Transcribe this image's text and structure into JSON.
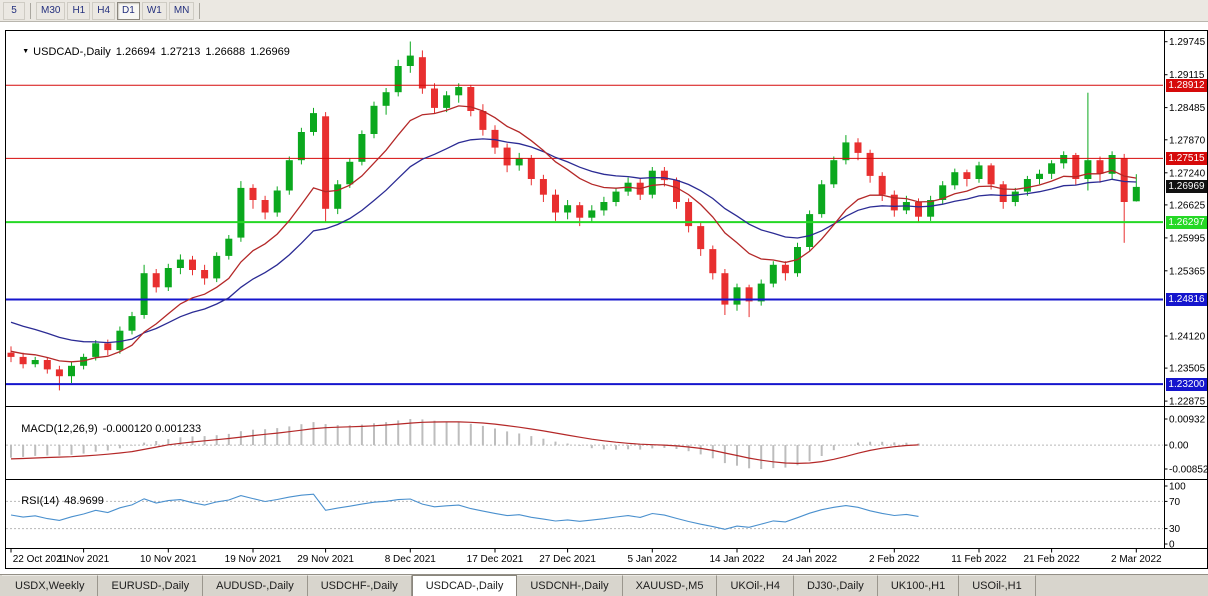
{
  "toolbar": {
    "buttons": [
      "5",
      "M30",
      "H1",
      "H4",
      "D1",
      "W1",
      "MN"
    ],
    "active": "D1"
  },
  "chart": {
    "dropdown_icon": "▼",
    "symbol_label": "USDCAD-,Daily",
    "ohlc_display": {
      "open": "1.26694",
      "high": "1.27213",
      "low": "1.26688",
      "close": "1.26969"
    }
  },
  "macd": {
    "label": "MACD(12,26,9)",
    "values": "-0.000120 0.001233",
    "axis_labels": [
      "0.00932",
      "0.00",
      "-0.00852"
    ]
  },
  "rsi": {
    "label": "RSI(14)",
    "value": "48.9699",
    "axis_labels": [
      "100",
      "70",
      "30",
      "0"
    ],
    "levels": [
      70,
      30
    ]
  },
  "tabs": {
    "active": "USDCAD-,Daily",
    "items": [
      "USDX,Weekly",
      "EURUSD-,Daily",
      "AUDUSD-,Daily",
      "USDCHF-,Daily",
      "USDCAD-,Daily",
      "USDCNH-,Daily",
      "XAUUSD-,M5",
      "UKOil-,H4",
      "DJ30-,Daily",
      "UK100-,H1",
      "USOil-,H1"
    ]
  },
  "chart_data": {
    "type": "candlestick",
    "symbol": "USDCAD",
    "timeframe": "Daily",
    "ylim": [
      1.228,
      1.2995
    ],
    "y_axis_labels": [
      "1.29745",
      "1.29115",
      "1.28485",
      "1.27870",
      "1.27240",
      "1.26625",
      "1.25995",
      "1.25365",
      "1.24120",
      "1.23505",
      "1.22875"
    ],
    "x_axis_labels": [
      {
        "index": 0,
        "label": "22 Oct 2021"
      },
      {
        "index": 6,
        "label": "1 Nov 2021"
      },
      {
        "index": 13,
        "label": "10 Nov 2021"
      },
      {
        "index": 20,
        "label": "19 Nov 2021"
      },
      {
        "index": 26,
        "label": "29 Nov 2021"
      },
      {
        "index": 33,
        "label": "8 Dec 2021"
      },
      {
        "index": 40,
        "label": "17 Dec 2021"
      },
      {
        "index": 46,
        "label": "27 Dec 2021"
      },
      {
        "index": 53,
        "label": "5 Jan 2022"
      },
      {
        "index": 60,
        "label": "14 Jan 2022"
      },
      {
        "index": 66,
        "label": "24 Jan 2022"
      },
      {
        "index": 73,
        "label": "2 Feb 2022"
      },
      {
        "index": 80,
        "label": "11 Feb 2022"
      },
      {
        "index": 86,
        "label": "21 Feb 2022"
      },
      {
        "index": 93,
        "label": "2 Mar 2022"
      }
    ],
    "horizontal_lines": [
      {
        "label": "1.28912",
        "value": 1.28912,
        "color": "#d60a0a",
        "width": 1
      },
      {
        "label": "1.27515",
        "value": 1.27515,
        "color": "#d60a0a",
        "width": 1
      },
      {
        "label": "1.26297",
        "value": 1.26297,
        "color": "#25d825",
        "width": 2
      },
      {
        "label": "1.24816",
        "value": 1.24816,
        "color": "#1515cd",
        "width": 2
      },
      {
        "label": "1.23200",
        "value": 1.232,
        "color": "#1515cd",
        "width": 2
      }
    ],
    "current_price": {
      "label": "1.26969",
      "value": 1.26969,
      "badge_color": "#111111"
    },
    "macd_params": [
      12,
      26,
      9
    ],
    "rsi_period": 14,
    "indicator_end_index": 75,
    "colors": {
      "bull": "#0ba81e",
      "bear": "#e82f2f",
      "ma_fast": "#b42828",
      "ma_slow": "#2b2b94",
      "macd_histogram": "#bdbdbd",
      "macd_signal": "#b42828",
      "rsi_line": "#4a90ce",
      "grid_dash": "#b8b8b8",
      "axis_text": "#000000"
    },
    "candles_ohlc": [
      [
        1.238,
        1.2392,
        1.2362,
        1.2372
      ],
      [
        1.2372,
        1.238,
        1.235,
        1.2358
      ],
      [
        1.2358,
        1.2372,
        1.2352,
        1.2366
      ],
      [
        1.2366,
        1.237,
        1.234,
        1.2348
      ],
      [
        1.2348,
        1.2355,
        1.2308,
        1.2335
      ],
      [
        1.2335,
        1.2362,
        1.2322,
        1.2355
      ],
      [
        1.2355,
        1.2378,
        1.2348,
        1.2372
      ],
      [
        1.2372,
        1.2404,
        1.2365,
        1.2398
      ],
      [
        1.2398,
        1.2405,
        1.2375,
        1.2385
      ],
      [
        1.2385,
        1.243,
        1.2378,
        1.2422
      ],
      [
        1.2422,
        1.2458,
        1.2415,
        1.245
      ],
      [
        1.2452,
        1.2548,
        1.2445,
        1.2532
      ],
      [
        1.2532,
        1.254,
        1.2495,
        1.2505
      ],
      [
        1.2505,
        1.255,
        1.2498,
        1.2542
      ],
      [
        1.2542,
        1.2568,
        1.253,
        1.2558
      ],
      [
        1.2558,
        1.2565,
        1.2528,
        1.2538
      ],
      [
        1.2538,
        1.2548,
        1.251,
        1.2522
      ],
      [
        1.2522,
        1.2572,
        1.2515,
        1.2565
      ],
      [
        1.2565,
        1.2605,
        1.2558,
        1.2598
      ],
      [
        1.26,
        1.2708,
        1.2592,
        1.2695
      ],
      [
        1.2695,
        1.2702,
        1.2655,
        1.2672
      ],
      [
        1.2672,
        1.268,
        1.2635,
        1.2648
      ],
      [
        1.2648,
        1.2698,
        1.264,
        1.269
      ],
      [
        1.269,
        1.2755,
        1.2682,
        1.2748
      ],
      [
        1.2748,
        1.281,
        1.274,
        1.2802
      ],
      [
        1.2802,
        1.2848,
        1.2795,
        1.2838
      ],
      [
        1.2832,
        1.284,
        1.2628,
        1.2655
      ],
      [
        1.2655,
        1.271,
        1.2645,
        1.2702
      ],
      [
        1.2702,
        1.2752,
        1.2695,
        1.2745
      ],
      [
        1.2745,
        1.2805,
        1.2738,
        1.2798
      ],
      [
        1.2798,
        1.286,
        1.279,
        1.2852
      ],
      [
        1.2852,
        1.2886,
        1.2835,
        1.2878
      ],
      [
        1.2878,
        1.294,
        1.287,
        1.2928
      ],
      [
        1.2928,
        1.2975,
        1.2915,
        1.2948
      ],
      [
        1.2945,
        1.2958,
        1.2875,
        1.2885
      ],
      [
        1.2885,
        1.2895,
        1.2838,
        1.2848
      ],
      [
        1.2848,
        1.288,
        1.284,
        1.2872
      ],
      [
        1.2872,
        1.2895,
        1.2858,
        1.2888
      ],
      [
        1.2888,
        1.2892,
        1.2832,
        1.2842
      ],
      [
        1.2842,
        1.2855,
        1.2795,
        1.2806
      ],
      [
        1.2806,
        1.2815,
        1.276,
        1.2772
      ],
      [
        1.2772,
        1.278,
        1.2725,
        1.2738
      ],
      [
        1.2738,
        1.2762,
        1.2728,
        1.2752
      ],
      [
        1.2752,
        1.2758,
        1.27,
        1.2712
      ],
      [
        1.2712,
        1.272,
        1.2668,
        1.2682
      ],
      [
        1.2682,
        1.2692,
        1.2632,
        1.2648
      ],
      [
        1.2648,
        1.2672,
        1.2635,
        1.2662
      ],
      [
        1.2662,
        1.2668,
        1.2622,
        1.2638
      ],
      [
        1.2638,
        1.2662,
        1.2628,
        1.2652
      ],
      [
        1.2652,
        1.2678,
        1.2642,
        1.2668
      ],
      [
        1.2668,
        1.2695,
        1.266,
        1.2688
      ],
      [
        1.2688,
        1.2715,
        1.268,
        1.2705
      ],
      [
        1.2705,
        1.2712,
        1.2672,
        1.2682
      ],
      [
        1.2682,
        1.2735,
        1.2675,
        1.2728
      ],
      [
        1.2728,
        1.2735,
        1.2698,
        1.271
      ],
      [
        1.271,
        1.2715,
        1.2655,
        1.2668
      ],
      [
        1.2668,
        1.2675,
        1.261,
        1.2622
      ],
      [
        1.2622,
        1.263,
        1.2565,
        1.2578
      ],
      [
        1.2578,
        1.2585,
        1.252,
        1.2532
      ],
      [
        1.2532,
        1.254,
        1.2452,
        1.2472
      ],
      [
        1.2472,
        1.2512,
        1.246,
        1.2505
      ],
      [
        1.2505,
        1.251,
        1.2448,
        1.2478
      ],
      [
        1.2478,
        1.252,
        1.247,
        1.2512
      ],
      [
        1.2512,
        1.2555,
        1.2505,
        1.2548
      ],
      [
        1.2548,
        1.2555,
        1.2518,
        1.2532
      ],
      [
        1.2532,
        1.259,
        1.2525,
        1.2582
      ],
      [
        1.2582,
        1.2652,
        1.2575,
        1.2645
      ],
      [
        1.2645,
        1.271,
        1.2638,
        1.2702
      ],
      [
        1.2702,
        1.2755,
        1.2695,
        1.2748
      ],
      [
        1.2748,
        1.2796,
        1.274,
        1.2782
      ],
      [
        1.2782,
        1.279,
        1.2748,
        1.2762
      ],
      [
        1.2762,
        1.2768,
        1.2705,
        1.2718
      ],
      [
        1.2718,
        1.2725,
        1.267,
        1.2682
      ],
      [
        1.2682,
        1.269,
        1.264,
        1.2652
      ],
      [
        1.2652,
        1.268,
        1.2645,
        1.2668
      ],
      [
        1.2668,
        1.2675,
        1.2628,
        1.264
      ],
      [
        1.264,
        1.268,
        1.2632,
        1.2672
      ],
      [
        1.2672,
        1.2708,
        1.2665,
        1.27
      ],
      [
        1.27,
        1.2732,
        1.2692,
        1.2725
      ],
      [
        1.2725,
        1.273,
        1.2698,
        1.2712
      ],
      [
        1.2712,
        1.2745,
        1.2705,
        1.2738
      ],
      [
        1.2738,
        1.2742,
        1.2692,
        1.2702
      ],
      [
        1.2702,
        1.2708,
        1.2655,
        1.2668
      ],
      [
        1.2668,
        1.2695,
        1.266,
        1.2688
      ],
      [
        1.2688,
        1.2718,
        1.268,
        1.2712
      ],
      [
        1.2712,
        1.273,
        1.2702,
        1.2722
      ],
      [
        1.2722,
        1.2748,
        1.2712,
        1.2742
      ],
      [
        1.2742,
        1.2765,
        1.2732,
        1.2758
      ],
      [
        1.2758,
        1.2762,
        1.27,
        1.2712
      ],
      [
        1.2712,
        1.2877,
        1.269,
        1.2748
      ],
      [
        1.2748,
        1.2755,
        1.2705,
        1.2722
      ],
      [
        1.2722,
        1.2765,
        1.2712,
        1.2758
      ],
      [
        1.2752,
        1.276,
        1.259,
        1.2668
      ],
      [
        1.26694,
        1.27213,
        1.26688,
        1.26969
      ]
    ]
  }
}
